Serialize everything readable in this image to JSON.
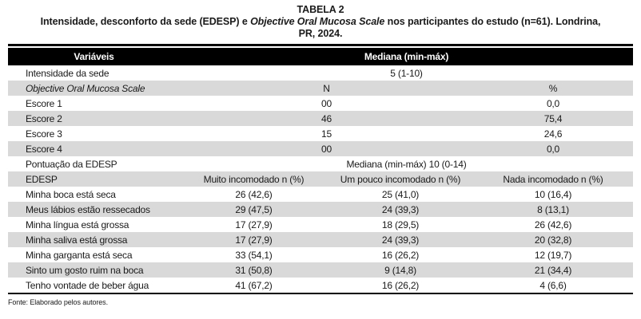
{
  "header": {
    "table_label": "TABELA 2",
    "subtitle_pre": "Intensidade, desconforto da sede (EDESP) e ",
    "subtitle_italic": "Objective Oral Mucosa Scale",
    "subtitle_post_line1": " nos participantes do estudo (n=61). Londrina,",
    "subtitle_line2": "PR, 2024."
  },
  "table": {
    "col1_header": "Variáveis",
    "col2_header": "Mediana (min-máx)",
    "rows": [
      {
        "cells": [
          {
            "t": "Intensidade da sede"
          },
          {
            "t": "5 (1-10)",
            "span": 3
          }
        ]
      },
      {
        "cells": [
          {
            "t": "Objective Oral Mucosa Scale",
            "italic": true
          },
          {
            "t": "N",
            "span": 2
          },
          {
            "t": "%"
          }
        ]
      },
      {
        "cells": [
          {
            "t": "Escore 1"
          },
          {
            "t": "00",
            "span": 2
          },
          {
            "t": "0,0"
          }
        ]
      },
      {
        "cells": [
          {
            "t": "Escore 2"
          },
          {
            "t": "46",
            "span": 2
          },
          {
            "t": "75,4"
          }
        ]
      },
      {
        "cells": [
          {
            "t": "Escore 3"
          },
          {
            "t": "15",
            "span": 2
          },
          {
            "t": "24,6"
          }
        ]
      },
      {
        "cells": [
          {
            "t": "Escore 4"
          },
          {
            "t": "00",
            "span": 2
          },
          {
            "t": "0,0"
          }
        ]
      },
      {
        "cells": [
          {
            "t": "Pontuação da EDESP"
          },
          {
            "t": "Mediana (min-máx) 10 (0-14)",
            "span": 3
          }
        ]
      },
      {
        "cells": [
          {
            "t": "EDESP"
          },
          {
            "t": "Muito incomodado n (%)"
          },
          {
            "t": "Um pouco incomodado n (%)"
          },
          {
            "t": "Nada incomodado n (%)"
          }
        ]
      },
      {
        "cells": [
          {
            "t": "Minha boca está seca"
          },
          {
            "t": "26 (42,6)"
          },
          {
            "t": "25 (41,0)"
          },
          {
            "t": "10 (16,4)"
          }
        ]
      },
      {
        "cells": [
          {
            "t": "Meus lábios estão ressecados"
          },
          {
            "t": "29 (47,5)"
          },
          {
            "t": "24 (39,3)"
          },
          {
            "t": "8 (13,1)"
          }
        ]
      },
      {
        "cells": [
          {
            "t": "Minha língua está grossa"
          },
          {
            "t": "17 (27,9)"
          },
          {
            "t": "18 (29,5)"
          },
          {
            "t": "26 (42,6)"
          }
        ]
      },
      {
        "cells": [
          {
            "t": "Minha saliva está grossa"
          },
          {
            "t": "17 (27,9)"
          },
          {
            "t": "24 (39,3)"
          },
          {
            "t": "20 (32,8)"
          }
        ]
      },
      {
        "cells": [
          {
            "t": "Minha garganta está seca"
          },
          {
            "t": "33 (54,1)"
          },
          {
            "t": "16 (26,2)"
          },
          {
            "t": "12 (19,7)"
          }
        ]
      },
      {
        "cells": [
          {
            "t": "Sinto um gosto ruim na boca"
          },
          {
            "t": "31 (50,8)"
          },
          {
            "t": "9 (14,8)"
          },
          {
            "t": "21 (34,4)"
          }
        ]
      },
      {
        "cells": [
          {
            "t": "Tenho vontade de beber água"
          },
          {
            "t": "41 (67,2)"
          },
          {
            "t": "16 (26,2)"
          },
          {
            "t": "4 (6,6)"
          }
        ]
      }
    ]
  },
  "footer": {
    "source": "Fonte: Elaborado pelos autores."
  },
  "colors": {
    "header_bg": "#000000",
    "header_text": "#ffffff",
    "stripe_gray": "#d9d9d9",
    "body_text": "#1a1a1a"
  }
}
